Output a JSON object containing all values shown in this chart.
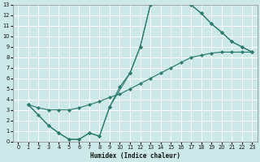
{
  "xlabel": "Humidex (Indice chaleur)",
  "bg_color": "#cce8e8",
  "grid_color": "#ffffff",
  "line_color": "#2e7b6e",
  "xlim": [
    -0.5,
    23.5
  ],
  "ylim": [
    0,
    13
  ],
  "xticks": [
    0,
    1,
    2,
    3,
    4,
    5,
    6,
    7,
    8,
    9,
    10,
    11,
    12,
    13,
    14,
    15,
    16,
    17,
    18,
    19,
    20,
    21,
    22,
    23
  ],
  "yticks": [
    0,
    1,
    2,
    3,
    4,
    5,
    6,
    7,
    8,
    9,
    10,
    11,
    12,
    13
  ],
  "curve1_x": [
    1,
    2,
    3,
    4,
    5,
    6,
    7,
    8,
    9,
    11,
    12,
    13,
    14,
    15,
    16,
    17,
    18,
    19,
    20,
    21,
    22,
    23
  ],
  "curve1_y": [
    3.5,
    2.5,
    1.5,
    0.8,
    0.2,
    0.2,
    0.8,
    0.5,
    3.3,
    6.5,
    9.0,
    13.0,
    13.2,
    13.2,
    13.3,
    13.0,
    12.2,
    11.2,
    10.4,
    9.5,
    9.0,
    8.5
  ],
  "curve2_x": [
    1,
    3,
    4,
    5,
    6,
    7,
    8,
    9,
    10,
    11,
    12,
    13,
    14,
    15,
    16,
    17,
    18,
    19,
    20,
    21,
    22,
    23
  ],
  "curve2_y": [
    3.5,
    1.5,
    0.8,
    0.2,
    0.2,
    0.8,
    0.5,
    3.3,
    5.2,
    6.5,
    9.0,
    13.0,
    13.2,
    13.2,
    13.3,
    13.0,
    12.2,
    11.2,
    10.4,
    9.5,
    9.0,
    8.5
  ],
  "curve3_x": [
    1,
    2,
    3,
    4,
    5,
    6,
    7,
    8,
    9,
    10,
    11,
    12,
    13,
    14,
    15,
    16,
    17,
    18,
    19,
    20,
    21,
    22,
    23
  ],
  "curve3_y": [
    3.5,
    3.2,
    3.0,
    3.0,
    3.0,
    3.2,
    3.5,
    3.8,
    4.2,
    4.5,
    5.0,
    5.5,
    6.0,
    6.5,
    7.0,
    7.5,
    8.0,
    8.2,
    8.4,
    8.5,
    8.5,
    8.5,
    8.5
  ]
}
